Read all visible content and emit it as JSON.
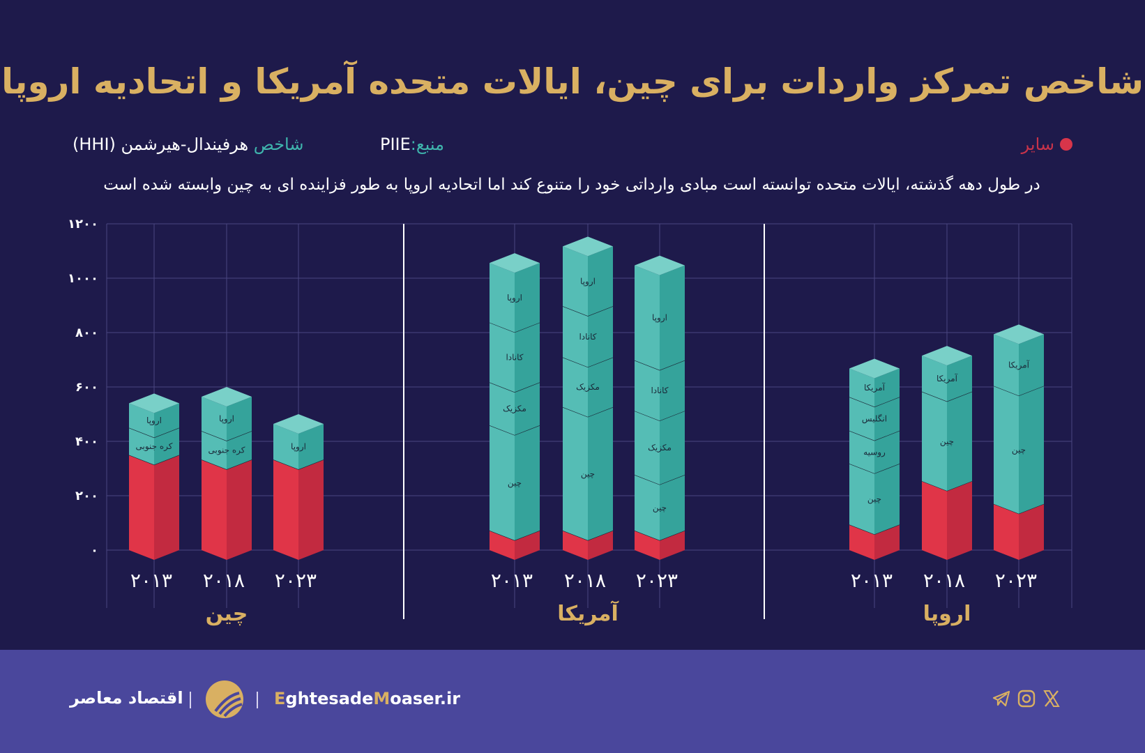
{
  "title": "شاخص تمرکز واردات برای چین، ایالات متحده آمریکا و اتحادیه اروپا",
  "legend": {
    "label": "سایر",
    "color": "#d8354a"
  },
  "source": {
    "label": "منبع:",
    "value": "PIIE"
  },
  "index": {
    "label": "شاخص",
    "value": "هرفیندال-هیرشمن (HHI)"
  },
  "subtitle": "در طول دهه گذشته، ایالات متحده توانسته است مبادی وارداتی خود را متنوع کند اما اتحادیه اروپا به طور فزاینده ای به چین وابسته شده است",
  "colors": {
    "background": "#1e1a4b",
    "title": "#d9b062",
    "teal": "#4fb8b0",
    "red": "#e03548",
    "footer": "#4a479c"
  },
  "chart_data": {
    "type": "bar",
    "stacked": true,
    "ylim": [
      0,
      1200
    ],
    "yticks": [
      "۰",
      "۲۰۰",
      "۴۰۰",
      "۶۰۰",
      "۸۰۰",
      "۱۰۰۰",
      "۱۲۰۰"
    ],
    "ytick_values": [
      0,
      200,
      400,
      600,
      800,
      1000,
      1200
    ],
    "grid": true,
    "groups": [
      {
        "name": "چین",
        "bars": [
          {
            "year": "۲۰۱۳",
            "segments": [
              {
                "name": "سایر",
                "value": 350
              },
              {
                "name": "کره جنوبی",
                "value": 100
              },
              {
                "name": "اروپا",
                "value": 90
              }
            ]
          },
          {
            "year": "۲۰۱۸",
            "segments": [
              {
                "name": "سایر",
                "value": 333
              },
              {
                "name": "کره جنوبی",
                "value": 105
              },
              {
                "name": "اروپا",
                "value": 126
              }
            ]
          },
          {
            "year": "۲۰۲۳",
            "segments": [
              {
                "name": "سایر",
                "value": 333
              },
              {
                "name": "اروپا",
                "value": 131
              }
            ]
          }
        ]
      },
      {
        "name": "آمریکا",
        "bars": [
          {
            "year": "۲۰۱۳",
            "segments": [
              {
                "name": "سایر",
                "value": 72
              },
              {
                "name": "چین",
                "value": 387
              },
              {
                "name": "مکزیک",
                "value": 158
              },
              {
                "name": "کانادا",
                "value": 220
              },
              {
                "name": "اروپا",
                "value": 219
              }
            ]
          },
          {
            "year": "۲۰۱۸",
            "segments": [
              {
                "name": "سایر",
                "value": 72
              },
              {
                "name": "چین",
                "value": 454
              },
              {
                "name": "مکزیک",
                "value": 183
              },
              {
                "name": "کانادا",
                "value": 188
              },
              {
                "name": "اروپا",
                "value": 220
              }
            ]
          },
          {
            "year": "۲۰۲۳",
            "segments": [
              {
                "name": "سایر",
                "value": 72
              },
              {
                "name": "چین",
                "value": 205
              },
              {
                "name": "مکزیک",
                "value": 235
              },
              {
                "name": "کانادا",
                "value": 186
              },
              {
                "name": "اروپا",
                "value": 349
              }
            ]
          }
        ]
      },
      {
        "name": "اروپا",
        "bars": [
          {
            "year": "۲۰۱۳",
            "segments": [
              {
                "name": "سایر",
                "value": 94
              },
              {
                "name": "چین",
                "value": 224
              },
              {
                "name": "روسیه",
                "value": 121
              },
              {
                "name": "انگلیس",
                "value": 124
              },
              {
                "name": "آمریکا",
                "value": 105
              }
            ]
          },
          {
            "year": "۲۰۱۸",
            "segments": [
              {
                "name": "سایر",
                "value": 254
              },
              {
                "name": "چین",
                "value": 329
              },
              {
                "name": "آمریکا",
                "value": 132
              }
            ]
          },
          {
            "year": "۲۰۲۳",
            "segments": [
              {
                "name": "سایر",
                "value": 170
              },
              {
                "name": "چین",
                "value": 434
              },
              {
                "name": "آمریکا",
                "value": 190
              }
            ]
          }
        ]
      }
    ]
  },
  "footer": {
    "brand": "اقتصاد معاصر",
    "site_e": "E",
    "site_1": "ghtesade",
    "site_m": "M",
    "site_2": "oaser.ir",
    "social_icons": [
      "telegram-icon",
      "instagram-icon",
      "x-icon"
    ]
  }
}
